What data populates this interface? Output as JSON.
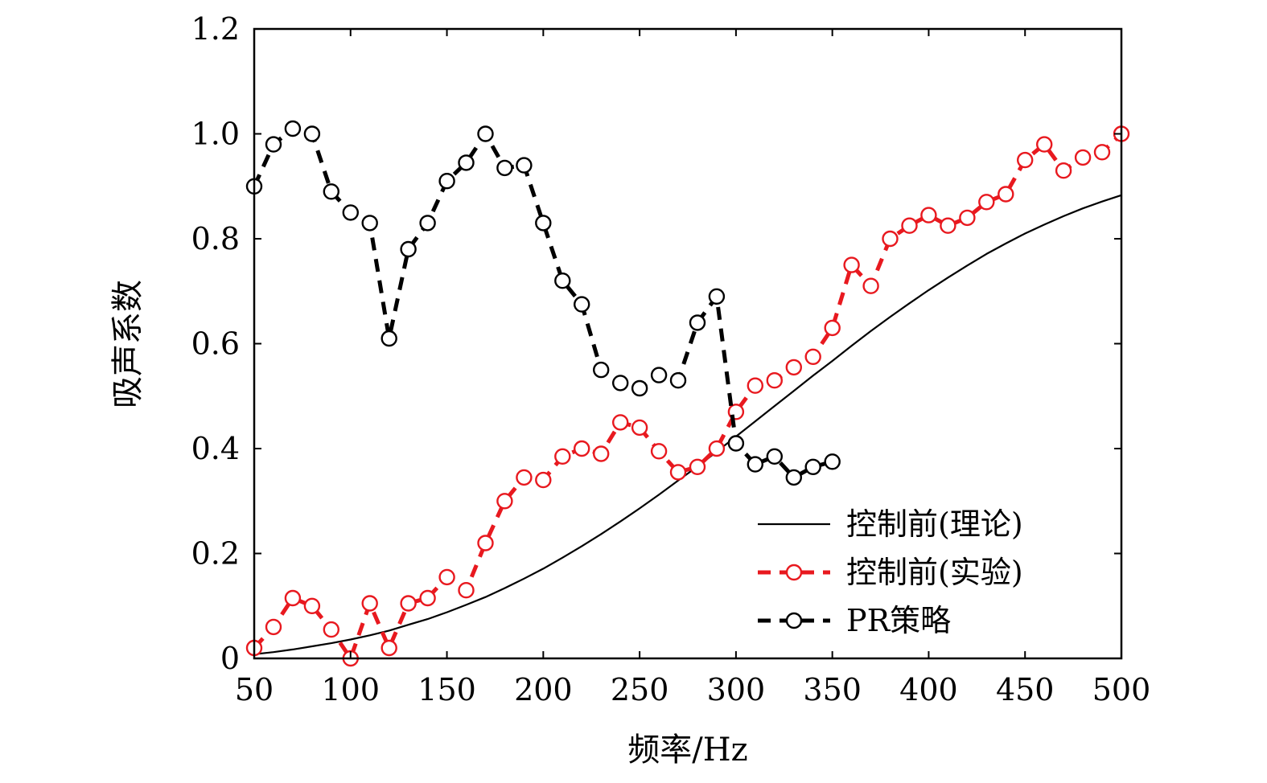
{
  "chart_data": {
    "type": "line",
    "xlabel": "频率/Hz",
    "ylabel": "吸声系数",
    "xlim": [
      50,
      500
    ],
    "ylim": [
      0,
      1.2
    ],
    "xticks": [
      50,
      100,
      150,
      200,
      250,
      300,
      350,
      400,
      450,
      500
    ],
    "xtick_labels": [
      "50",
      "100",
      "150",
      "200",
      "250",
      "300",
      "350",
      "400",
      "450",
      "500"
    ],
    "yticks": [
      0,
      0.2,
      0.4,
      0.6,
      0.8,
      1.0,
      1.2
    ],
    "ytick_labels": [
      "0",
      "0.2",
      "0.4",
      "0.6",
      "0.8",
      "1.0",
      "1.2"
    ],
    "grid": false,
    "legend_position": "bottom-right",
    "series": [
      {
        "name": "控制前(理论)",
        "style": "solid",
        "color": "#000000",
        "marker": "none",
        "x": [
          50,
          60,
          70,
          80,
          90,
          100,
          110,
          120,
          130,
          140,
          150,
          160,
          170,
          180,
          190,
          200,
          210,
          220,
          230,
          240,
          250,
          260,
          270,
          280,
          290,
          300,
          310,
          320,
          330,
          340,
          350,
          360,
          370,
          380,
          390,
          400,
          410,
          420,
          430,
          440,
          450,
          460,
          470,
          480,
          490,
          500
        ],
        "y": [
          0.008,
          0.012,
          0.017,
          0.023,
          0.029,
          0.036,
          0.044,
          0.053,
          0.064,
          0.075,
          0.088,
          0.102,
          0.117,
          0.134,
          0.152,
          0.171,
          0.192,
          0.214,
          0.237,
          0.261,
          0.286,
          0.312,
          0.339,
          0.366,
          0.394,
          0.423,
          0.452,
          0.481,
          0.51,
          0.539,
          0.567,
          0.596,
          0.624,
          0.651,
          0.677,
          0.702,
          0.726,
          0.749,
          0.771,
          0.791,
          0.81,
          0.827,
          0.843,
          0.858,
          0.871,
          0.883
        ]
      },
      {
        "name": "控制前(实验)",
        "style": "dashed",
        "color": "#e8191f",
        "marker": "circle",
        "x": [
          50,
          60,
          70,
          80,
          90,
          100,
          110,
          120,
          130,
          140,
          150,
          160,
          170,
          180,
          190,
          200,
          210,
          220,
          230,
          240,
          250,
          260,
          270,
          280,
          290,
          300,
          310,
          320,
          330,
          340,
          350,
          360,
          370,
          380,
          390,
          400,
          410,
          420,
          430,
          440,
          450,
          460,
          470,
          480,
          490,
          500
        ],
        "y": [
          0.02,
          0.06,
          0.115,
          0.1,
          0.055,
          0.0,
          0.105,
          0.02,
          0.105,
          0.115,
          0.155,
          0.13,
          0.22,
          0.3,
          0.345,
          0.34,
          0.385,
          0.4,
          0.39,
          0.45,
          0.44,
          0.395,
          0.355,
          0.365,
          0.4,
          0.47,
          0.52,
          0.53,
          0.555,
          0.575,
          0.63,
          0.75,
          0.71,
          0.8,
          0.825,
          0.845,
          0.825,
          0.84,
          0.87,
          0.885,
          0.95,
          0.98,
          0.93,
          0.955,
          0.965,
          1.0
        ]
      },
      {
        "name": "PR策略",
        "style": "dashed",
        "color": "#000000",
        "marker": "circle",
        "x": [
          50,
          60,
          70,
          80,
          90,
          100,
          110,
          120,
          130,
          140,
          150,
          160,
          170,
          180,
          190,
          200,
          210,
          220,
          230,
          240,
          250,
          260,
          270,
          280,
          290,
          300,
          310,
          320,
          330,
          340,
          350
        ],
        "y": [
          0.9,
          0.98,
          1.01,
          1.0,
          0.89,
          0.85,
          0.83,
          0.61,
          0.78,
          0.83,
          0.91,
          0.945,
          1.0,
          0.935,
          0.94,
          0.83,
          0.72,
          0.675,
          0.55,
          0.525,
          0.515,
          0.54,
          0.53,
          0.64,
          0.69,
          0.41,
          0.37,
          0.385,
          0.345,
          0.365,
          0.375
        ]
      }
    ]
  }
}
